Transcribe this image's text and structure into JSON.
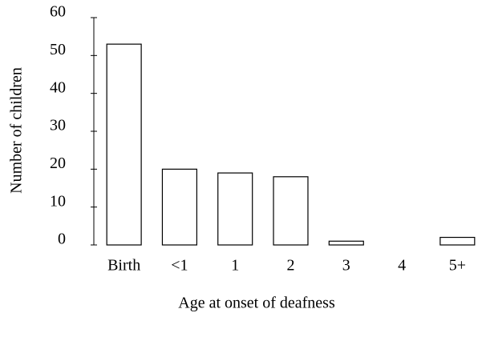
{
  "chart_data": {
    "type": "bar",
    "x_label": "Age at onset of deafness",
    "y_label": "Number of children",
    "categories": [
      "Birth",
      "<1",
      "1",
      "2",
      "3",
      "4",
      "5+"
    ],
    "values": [
      53,
      20,
      19,
      18,
      1,
      0,
      2
    ],
    "color": "#ffffff",
    "ylim": [
      0,
      60
    ],
    "yticks": [
      0,
      10,
      20,
      30,
      40,
      50,
      60
    ],
    "grid": false
  }
}
